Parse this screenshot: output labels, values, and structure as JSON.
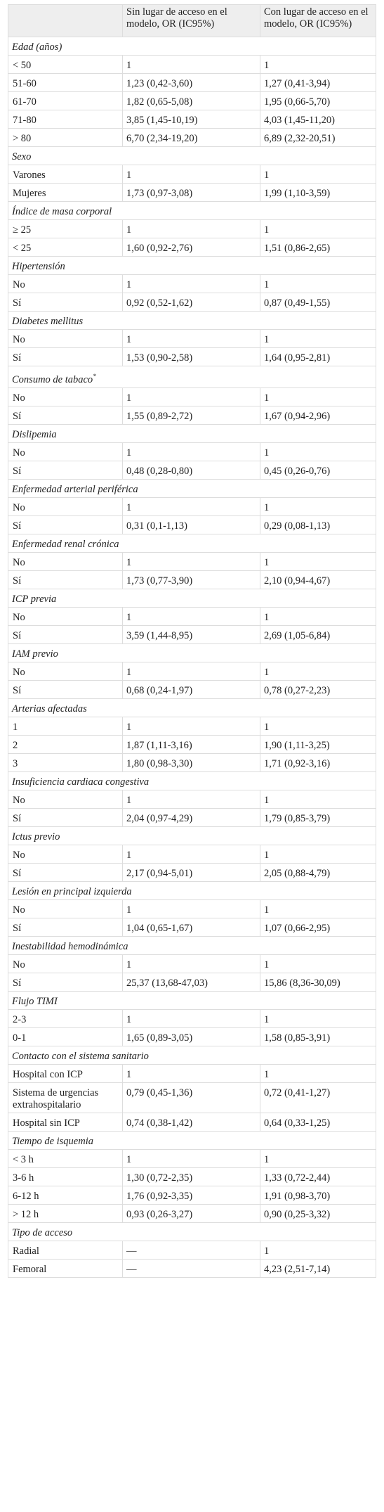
{
  "table": {
    "header": [
      "",
      "Sin lugar de acceso en el modelo, OR (IC95%)",
      "Con lugar de acceso en el modelo, OR (IC95%)"
    ],
    "sections": [
      {
        "title": "Edad (años)",
        "rows": [
          [
            "< 50",
            "1",
            "1"
          ],
          [
            "51-60",
            "1,23 (0,42-3,60)",
            "1,27 (0,41-3,94)"
          ],
          [
            "61-70",
            "1,82 (0,65-5,08)",
            "1,95 (0,66-5,70)"
          ],
          [
            "71-80",
            "3,85 (1,45-10,19)",
            "4,03 (1,45-11,20)"
          ],
          [
            "> 80",
            "6,70 (2,34-19,20)",
            "6,89 (2,32-20,51)"
          ]
        ]
      },
      {
        "title": "Sexo",
        "rows": [
          [
            "Varones",
            "1",
            "1"
          ],
          [
            "Mujeres",
            "1,73 (0,97-3,08)",
            "1,99 (1,10-3,59)"
          ]
        ]
      },
      {
        "title": "Índice de masa corporal",
        "rows": [
          [
            "≥ 25",
            "1",
            "1"
          ],
          [
            "< 25",
            "1,60 (0,92-2,76)",
            "1,51 (0,86-2,65)"
          ]
        ]
      },
      {
        "title": "Hipertensión",
        "rows": [
          [
            "No",
            "1",
            "1"
          ],
          [
            "Sí",
            "0,92 (0,52-1,62)",
            "0,87 (0,49-1,55)"
          ]
        ]
      },
      {
        "title": "Diabetes mellitus",
        "rows": [
          [
            "No",
            "1",
            "1"
          ],
          [
            "Sí",
            "1,53 (0,90-2,58)",
            "1,64 (0,95-2,81)"
          ]
        ]
      },
      {
        "title": "Consumo de tabaco",
        "marker": "*",
        "rows": [
          [
            "No",
            "1",
            "1"
          ],
          [
            "Sí",
            "1,55 (0,89-2,72)",
            "1,67 (0,94-2,96)"
          ]
        ]
      },
      {
        "title": "Dislipemia",
        "rows": [
          [
            "No",
            "1",
            "1"
          ],
          [
            "Sí",
            "0,48 (0,28-0,80)",
            "0,45 (0,26-0,76)"
          ]
        ]
      },
      {
        "title": "Enfermedad arterial periférica",
        "rows": [
          [
            "No",
            "1",
            "1"
          ],
          [
            "Sí",
            "0,31 (0,1-1,13)",
            "0,29 (0,08-1,13)"
          ]
        ]
      },
      {
        "title": "Enfermedad renal crónica",
        "rows": [
          [
            "No",
            "1",
            "1"
          ],
          [
            "Sí",
            "1,73 (0,77-3,90)",
            "2,10 (0,94-4,67)"
          ]
        ]
      },
      {
        "title": "ICP previa",
        "rows": [
          [
            "No",
            "1",
            "1"
          ],
          [
            "Sí",
            "3,59 (1,44-8,95)",
            "2,69 (1,05-6,84)"
          ]
        ]
      },
      {
        "title": "IAM previo",
        "rows": [
          [
            "No",
            "1",
            "1"
          ],
          [
            "Sí",
            "0,68 (0,24-1,97)",
            "0,78 (0,27-2,23)"
          ]
        ]
      },
      {
        "title": "Arterias afectadas",
        "rows": [
          [
            "1",
            "1",
            "1"
          ],
          [
            "2",
            "1,87 (1,11-3,16)",
            "1,90 (1,11-3,25)"
          ],
          [
            "3",
            "1,80 (0,98-3,30)",
            "1,71 (0,92-3,16)"
          ]
        ]
      },
      {
        "title": "Insuficiencia cardiaca congestiva",
        "rows": [
          [
            "No",
            "1",
            "1"
          ],
          [
            "Sí",
            "2,04 (0,97-4,29)",
            "1,79 (0,85-3,79)"
          ]
        ]
      },
      {
        "title": "Ictus previo",
        "rows": [
          [
            "No",
            "1",
            "1"
          ],
          [
            "Sí",
            "2,17 (0,94-5,01)",
            "2,05 (0,88-4,79)"
          ]
        ]
      },
      {
        "title": "Lesión en principal izquierda",
        "rows": [
          [
            "No",
            "1",
            "1"
          ],
          [
            "Sí",
            "1,04 (0,65-1,67)",
            "1,07 (0,66-2,95)"
          ]
        ]
      },
      {
        "title": "Inestabilidad hemodinámica",
        "rows": [
          [
            "No",
            "1",
            "1"
          ],
          [
            "Sí",
            "25,37 (13,68-47,03)",
            "15,86 (8,36-30,09)"
          ]
        ]
      },
      {
        "title": "Flujo TIMI",
        "rows": [
          [
            "2-3",
            "1",
            "1"
          ],
          [
            "0-1",
            "1,65 (0,89-3,05)",
            "1,58 (0,85-3,91)"
          ]
        ]
      },
      {
        "title": "Contacto con el sistema sanitario",
        "rows": [
          [
            "Hospital con ICP",
            "1",
            "1"
          ],
          [
            "Sistema de urgencias extrahospitalario",
            "0,79 (0,45-1,36)",
            "0,72 (0,41-1,27)"
          ],
          [
            "Hospital sin ICP",
            "0,74 (0,38-1,42)",
            "0,64 (0,33-1,25)"
          ]
        ]
      },
      {
        "title": "Tiempo de isquemia",
        "rows": [
          [
            "< 3 h",
            "1",
            "1"
          ],
          [
            "3-6 h",
            "1,30 (0,72-2,35)",
            "1,33 (0,72-2,44)"
          ],
          [
            "6-12 h",
            "1,76 (0,92-3,35)",
            "1,91 (0,98-3,70)"
          ],
          [
            "> 12 h",
            "0,93 (0,26-3,27)",
            "0,90 (0,25-3,32)"
          ]
        ]
      },
      {
        "title": "Tipo de acceso",
        "rows": [
          [
            "Radial",
            "—",
            "1"
          ],
          [
            "Femoral",
            "—",
            "4,23 (2,51-7,14)"
          ]
        ]
      }
    ]
  }
}
